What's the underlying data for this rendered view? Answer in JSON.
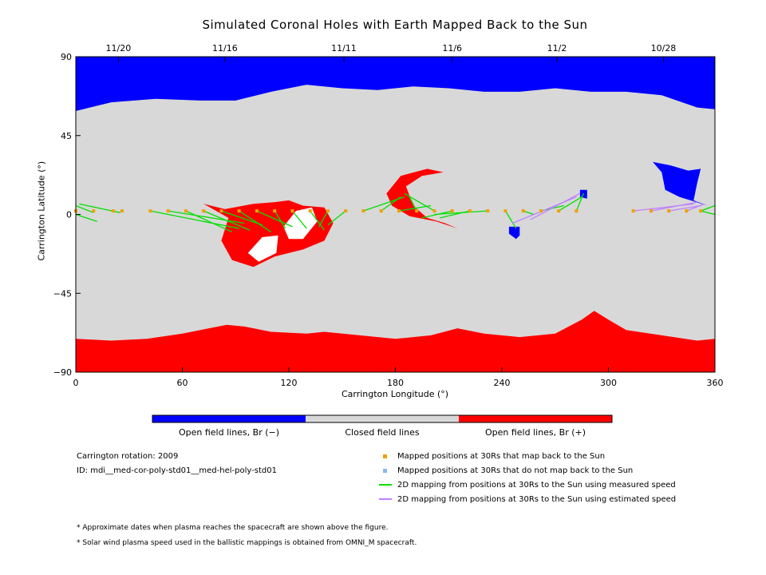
{
  "chart_data": {
    "type": "map",
    "title": "Simulated Coronal Holes with Earth Mapped Back to the Sun",
    "xlabel": "Carrington Longitude (°)",
    "ylabel": "Carrington Latitude (°)",
    "xlim": [
      0,
      360
    ],
    "ylim": [
      -90,
      90
    ],
    "x_ticks": [
      0,
      60,
      120,
      180,
      240,
      300,
      360
    ],
    "y_ticks": [
      90,
      45,
      0,
      -45,
      -90
    ],
    "y_tick_labels": [
      "90",
      "45",
      "0",
      "−45",
      "−90"
    ],
    "top_date_ticks": [
      {
        "label": "11/20",
        "lon": 24
      },
      {
        "label": "11/16",
        "lon": 84
      },
      {
        "label": "11/11",
        "lon": 151
      },
      {
        "label": "11/6",
        "lon": 212
      },
      {
        "label": "11/2",
        "lon": 271
      },
      {
        "label": "10/28",
        "lon": 331
      }
    ],
    "colorbar": {
      "colors": [
        "#0000ff",
        "#d8d8d8",
        "#ff0000"
      ],
      "labels": [
        "Open field lines, Br (−)",
        "Closed field lines",
        "Open field lines, Br (+)"
      ]
    },
    "regions": {
      "north_cap": {
        "polarity": "negative",
        "color": "#0000ff",
        "boundary": [
          [
            0,
            59
          ],
          [
            20,
            64
          ],
          [
            45,
            66
          ],
          [
            70,
            65
          ],
          [
            90,
            65
          ],
          [
            110,
            70
          ],
          [
            130,
            74
          ],
          [
            150,
            72
          ],
          [
            170,
            71
          ],
          [
            190,
            73
          ],
          [
            210,
            72
          ],
          [
            230,
            70
          ],
          [
            250,
            70
          ],
          [
            270,
            72
          ],
          [
            290,
            70
          ],
          [
            310,
            70
          ],
          [
            330,
            68
          ],
          [
            350,
            61
          ],
          [
            360,
            60
          ]
        ]
      },
      "south_cap": {
        "polarity": "positive",
        "color": "#ff0000",
        "boundary": [
          [
            0,
            -71
          ],
          [
            20,
            -72
          ],
          [
            40,
            -71
          ],
          [
            60,
            -68
          ],
          [
            75,
            -65
          ],
          [
            85,
            -63
          ],
          [
            95,
            -64
          ],
          [
            110,
            -67
          ],
          [
            130,
            -68
          ],
          [
            140,
            -67
          ],
          [
            160,
            -69
          ],
          [
            180,
            -71
          ],
          [
            200,
            -69
          ],
          [
            215,
            -65
          ],
          [
            230,
            -68
          ],
          [
            250,
            -70
          ],
          [
            270,
            -68
          ],
          [
            285,
            -60
          ],
          [
            292,
            -55
          ],
          [
            300,
            -60
          ],
          [
            310,
            -66
          ],
          [
            330,
            -69
          ],
          [
            350,
            -72
          ],
          [
            360,
            -71
          ]
        ]
      },
      "positive_holes": [
        [
          [
            72,
            6
          ],
          [
            84,
            3
          ],
          [
            100,
            6
          ],
          [
            112,
            7
          ],
          [
            120,
            8
          ],
          [
            128,
            5
          ],
          [
            140,
            4
          ],
          [
            145,
            -5
          ],
          [
            140,
            -15
          ],
          [
            128,
            -20
          ],
          [
            112,
            -24
          ],
          [
            100,
            -30
          ],
          [
            88,
            -26
          ],
          [
            82,
            -15
          ],
          [
            86,
            -2
          ]
        ],
        [
          [
            175,
            12
          ],
          [
            183,
            22
          ],
          [
            198,
            26
          ],
          [
            207,
            24
          ],
          [
            195,
            22
          ],
          [
            186,
            16
          ],
          [
            190,
            5
          ],
          [
            198,
            -2
          ],
          [
            208,
            -5
          ],
          [
            215,
            -8
          ],
          [
            203,
            -4
          ],
          [
            188,
            -1
          ],
          [
            178,
            5
          ]
        ]
      ],
      "negative_holes": [
        [
          [
            244,
            -7
          ],
          [
            250,
            -7
          ],
          [
            250,
            -12
          ],
          [
            248,
            -14
          ],
          [
            244,
            -11
          ]
        ],
        [
          [
            284,
            14
          ],
          [
            288,
            14
          ],
          [
            288,
            9
          ],
          [
            284,
            10
          ]
        ],
        [
          [
            325,
            30
          ],
          [
            335,
            28
          ],
          [
            345,
            25
          ],
          [
            352,
            26
          ],
          [
            350,
            18
          ],
          [
            348,
            8
          ],
          [
            356,
            5
          ],
          [
            340,
            10
          ],
          [
            332,
            14
          ],
          [
            330,
            24
          ]
        ]
      ],
      "closed_islands": [
        [
          [
            97,
            -22
          ],
          [
            105,
            -13
          ],
          [
            114,
            -12
          ],
          [
            113,
            -22
          ],
          [
            103,
            -27
          ]
        ],
        [
          [
            117,
            -7
          ],
          [
            124,
            2
          ],
          [
            133,
            4
          ],
          [
            136,
            -4
          ],
          [
            128,
            -14
          ],
          [
            120,
            -14
          ]
        ]
      ]
    },
    "series": [
      {
        "name": "Mapped positions at 30Rs that map back to the Sun",
        "marker": "square",
        "color": "#f0a000",
        "points": [
          [
            0,
            2
          ],
          [
            10,
            2
          ],
          [
            21,
            2
          ],
          [
            26,
            2
          ],
          [
            42,
            2
          ],
          [
            52,
            2
          ],
          [
            62,
            2
          ],
          [
            72,
            2
          ],
          [
            82,
            2
          ],
          [
            92,
            2
          ],
          [
            102,
            2
          ],
          [
            112,
            2
          ],
          [
            122,
            2
          ],
          [
            132,
            2
          ],
          [
            142,
            2
          ],
          [
            152,
            2
          ],
          [
            162,
            2
          ],
          [
            172,
            2
          ],
          [
            182,
            2
          ],
          [
            192,
            2
          ],
          [
            202,
            2
          ],
          [
            212,
            2
          ],
          [
            222,
            2
          ],
          [
            232,
            2
          ],
          [
            242,
            2
          ],
          [
            252,
            2
          ],
          [
            262,
            2
          ],
          [
            272,
            2
          ],
          [
            282,
            2
          ],
          [
            314,
            2
          ],
          [
            324,
            2
          ],
          [
            334,
            2
          ],
          [
            344,
            2
          ],
          [
            352,
            2
          ]
        ]
      },
      {
        "name": "Mapped positions at 30Rs that do not map back to the Sun",
        "marker": "square",
        "color": "#88b8f0",
        "points": []
      },
      {
        "name": "2D mapping from positions at 30Rs to the Sun using measured speed",
        "color": "#00e000",
        "segments": [
          [
            [
              0,
              5
            ],
            [
              10,
              1
            ]
          ],
          [
            [
              0,
              0
            ],
            [
              12,
              -4
            ]
          ],
          [
            [
              2,
              6
            ],
            [
              25,
              1
            ]
          ],
          [
            [
              42,
              2
            ],
            [
              92,
              -8
            ]
          ],
          [
            [
              52,
              2
            ],
            [
              95,
              -5
            ]
          ],
          [
            [
              62,
              2
            ],
            [
              88,
              -10
            ]
          ],
          [
            [
              72,
              2
            ],
            [
              98,
              -9
            ]
          ],
          [
            [
              82,
              2
            ],
            [
              105,
              -6
            ]
          ],
          [
            [
              92,
              2
            ],
            [
              110,
              -10
            ]
          ],
          [
            [
              102,
              2
            ],
            [
              122,
              -7
            ]
          ],
          [
            [
              112,
              2
            ],
            [
              118,
              -8
            ]
          ],
          [
            [
              122,
              2
            ],
            [
              130,
              -8
            ]
          ],
          [
            [
              132,
              2
            ],
            [
              140,
              -9
            ]
          ],
          [
            [
              142,
              2
            ],
            [
              137,
              -7
            ]
          ],
          [
            [
              152,
              2
            ],
            [
              142,
              -6
            ]
          ],
          [
            [
              162,
              2
            ],
            [
              185,
              10
            ]
          ],
          [
            [
              172,
              2
            ],
            [
              183,
              10
            ]
          ],
          [
            [
              182,
              2
            ],
            [
              200,
              5
            ]
          ],
          [
            [
              192,
              2
            ],
            [
              188,
              10
            ]
          ],
          [
            [
              202,
              2
            ],
            [
              185,
              12
            ]
          ],
          [
            [
              212,
              2
            ],
            [
              195,
              -2
            ]
          ],
          [
            [
              222,
              2
            ],
            [
              205,
              -2
            ]
          ],
          [
            [
              232,
              2
            ],
            [
              202,
              0
            ]
          ],
          [
            [
              242,
              2
            ],
            [
              248,
              -8
            ]
          ],
          [
            [
              252,
              2
            ],
            [
              258,
              0
            ]
          ],
          [
            [
              262,
              2
            ],
            [
              275,
              5
            ]
          ],
          [
            [
              272,
              2
            ],
            [
              285,
              10
            ]
          ],
          [
            [
              282,
              2
            ],
            [
              286,
              12
            ]
          ],
          [
            [
              352,
              2
            ],
            [
              360,
              5
            ]
          ],
          [
            [
              352,
              2
            ],
            [
              360,
              0
            ]
          ]
        ]
      },
      {
        "name": "2D mapping from positions at 30Rs to the Sun using estimated speed",
        "color": "#c080ff",
        "segments": [
          [
            [
              246,
              -5
            ],
            [
              282,
              10
            ]
          ],
          [
            [
              256,
              -3
            ],
            [
              284,
              12
            ]
          ],
          [
            [
              314,
              2
            ],
            [
              348,
              6
            ]
          ],
          [
            [
              324,
              2
            ],
            [
              350,
              7
            ]
          ],
          [
            [
              334,
              2
            ],
            [
              352,
              5
            ]
          ],
          [
            [
              344,
              2
            ],
            [
              354,
              6
            ]
          ]
        ]
      }
    ],
    "grid": false,
    "legend_placement": "bottom-right"
  },
  "info": {
    "rotation": "Carrington rotation: 2009",
    "id": "ID: mdi__med-cor-poly-std01__med-hel-poly-std01"
  },
  "notes": [
    "* Approximate dates when plasma reaches the spacecraft are shown above the figure.",
    "* Solar wind plasma speed used in the ballistic mappings is obtained from OMNI_M spacecraft."
  ]
}
